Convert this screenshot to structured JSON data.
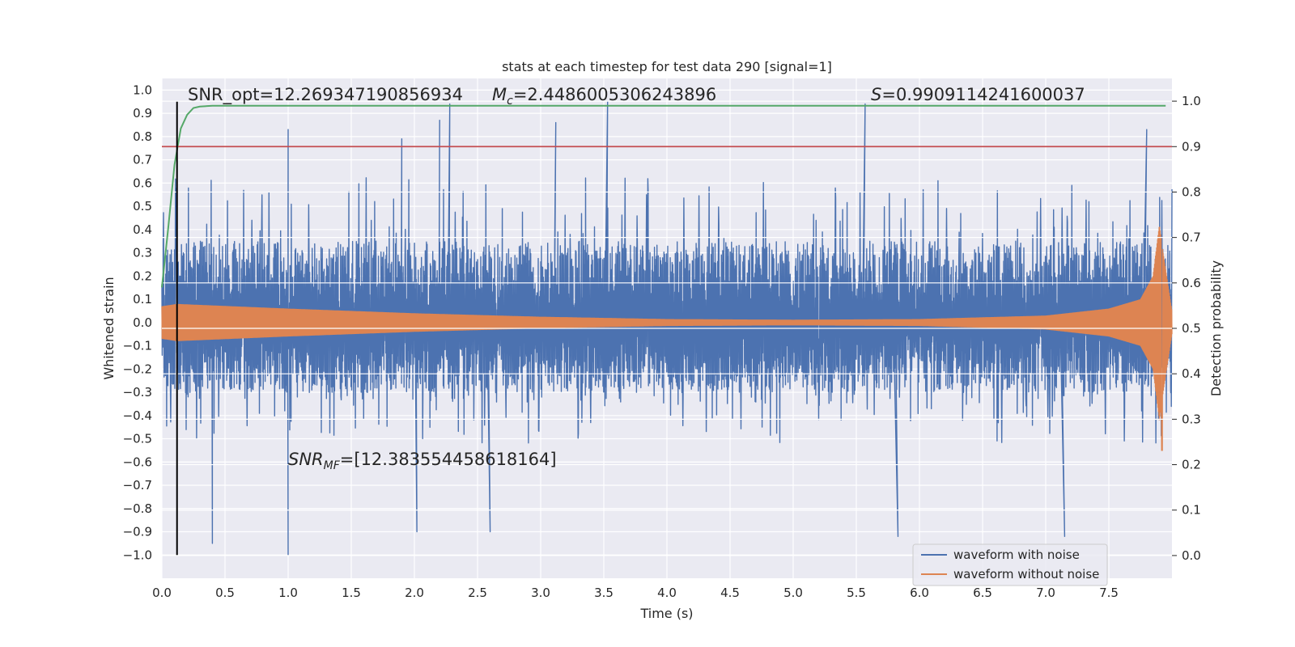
{
  "chart_data": {
    "type": "line",
    "title": "stats at each timestep for test data 290 [signal=1]",
    "xlabel": "Time (s)",
    "ylabel": "Whitened strain",
    "ylabel_right": "Detection probability",
    "xlim": [
      0.0,
      8.0
    ],
    "ylim": [
      -1.1,
      1.05
    ],
    "ylim_right": [
      -0.05,
      1.05
    ],
    "xticks": [
      0.0,
      0.5,
      1.0,
      1.5,
      2.0,
      2.5,
      3.0,
      3.5,
      4.0,
      4.5,
      5.0,
      5.5,
      6.0,
      6.5,
      7.0,
      7.5
    ],
    "xtick_labels": [
      "0.0",
      "0.5",
      "1.0",
      "1.5",
      "2.0",
      "2.5",
      "3.0",
      "3.5",
      "4.0",
      "4.5",
      "5.0",
      "5.5",
      "6.0",
      "6.5",
      "7.0",
      "7.5"
    ],
    "yticks": [
      1.0,
      0.9,
      0.8,
      0.7,
      0.6,
      0.5,
      0.4,
      0.3,
      0.2,
      0.1,
      0.0,
      -0.1,
      -0.2,
      -0.3,
      -0.4,
      -0.5,
      -0.6,
      -0.7,
      -0.8,
      -0.9,
      -1.0
    ],
    "ytick_labels": [
      "1.0",
      "0.9",
      "0.8",
      "0.7",
      "0.6",
      "0.5",
      "0.4",
      "0.3",
      "0.2",
      "0.1",
      "0.0",
      "−0.1",
      "−0.2",
      "−0.3",
      "−0.4",
      "−0.5",
      "−0.6",
      "−0.7",
      "−0.8",
      "−0.9",
      "−1.0"
    ],
    "yticks_right": [
      1.0,
      0.9,
      0.8,
      0.7,
      0.6,
      0.5,
      0.4,
      0.3,
      0.2,
      0.1,
      0.0
    ],
    "ytick_labels_right": [
      "1.0",
      "0.9",
      "0.8",
      "0.7",
      "0.6",
      "0.5",
      "0.4",
      "0.3",
      "0.2",
      "0.1",
      "0.0"
    ],
    "grid": true,
    "legend_placement": "lower-right",
    "series": [
      {
        "name": "waveform with noise",
        "color": "#4c72b0",
        "axis": "left",
        "kind": "noise",
        "typical_amplitude_range": [
          -0.42,
          0.5
        ],
        "peaks": [
          {
            "x": 1.0,
            "y": 0.83
          },
          {
            "x": 1.9,
            "y": 0.79
          },
          {
            "x": 2.2,
            "y": 0.87
          },
          {
            "x": 2.28,
            "y": 0.94
          },
          {
            "x": 3.12,
            "y": 0.86
          },
          {
            "x": 3.53,
            "y": 0.95
          },
          {
            "x": 5.57,
            "y": 0.94
          },
          {
            "x": 7.8,
            "y": 0.83
          },
          {
            "x": 0.4,
            "y": -0.95
          },
          {
            "x": 1.0,
            "y": -1.0
          },
          {
            "x": 2.02,
            "y": -0.9
          },
          {
            "x": 2.6,
            "y": -0.9
          },
          {
            "x": 5.83,
            "y": -0.92
          },
          {
            "x": 7.15,
            "y": -0.92
          }
        ]
      },
      {
        "name": "waveform without noise",
        "color": "#dd8452",
        "axis": "left",
        "kind": "chirp",
        "envelope": [
          {
            "x": 0.0,
            "y": 0.07
          },
          {
            "x": 0.12,
            "y": 0.08
          },
          {
            "x": 1.0,
            "y": 0.06
          },
          {
            "x": 2.0,
            "y": 0.04
          },
          {
            "x": 3.0,
            "y": 0.025
          },
          {
            "x": 4.0,
            "y": 0.015
          },
          {
            "x": 5.0,
            "y": 0.012
          },
          {
            "x": 6.0,
            "y": 0.015
          },
          {
            "x": 7.0,
            "y": 0.03
          },
          {
            "x": 7.5,
            "y": 0.06
          },
          {
            "x": 7.75,
            "y": 0.1
          },
          {
            "x": 7.85,
            "y": 0.2
          },
          {
            "x": 7.9,
            "y": 0.42
          },
          {
            "x": 7.93,
            "y": 0.3
          },
          {
            "x": 8.0,
            "y": 0.05
          }
        ],
        "minimum": {
          "x": 7.92,
          "y": -0.55
        }
      },
      {
        "name": "detection probability",
        "color": "#55a868",
        "axis": "right",
        "x": [
          0.0,
          0.05,
          0.1,
          0.15,
          0.2,
          0.25,
          0.3,
          0.4,
          0.6,
          1.0,
          2.0,
          4.0,
          6.0,
          7.95
        ],
        "y": [
          0.59,
          0.72,
          0.86,
          0.94,
          0.97,
          0.985,
          0.988,
          0.99,
          0.99,
          0.99,
          0.99,
          0.99,
          0.99,
          0.99
        ]
      }
    ],
    "threshold": {
      "axis": "right",
      "y": 0.9,
      "color": "#c44e52"
    },
    "vline": {
      "x": 0.12,
      "ymin": -1.0,
      "ymax": 0.95,
      "color": "#000000"
    },
    "annotations": [
      {
        "id": "snr_opt",
        "text": "SNR_opt=12.269347190856934"
      },
      {
        "id": "mc",
        "symbol": "M",
        "subscript": "c",
        "text": "=2.4486005306243896"
      },
      {
        "id": "s",
        "symbol": "S",
        "text": "=0.9909114241600037"
      },
      {
        "id": "snr_mf",
        "symbol": "SNR",
        "subscript": "MF",
        "text": "=[12.383554458618164]"
      }
    ]
  },
  "legend": {
    "items": [
      {
        "label": "waveform with noise",
        "color": "#4c72b0"
      },
      {
        "label": "waveform without noise",
        "color": "#dd8452"
      }
    ]
  }
}
